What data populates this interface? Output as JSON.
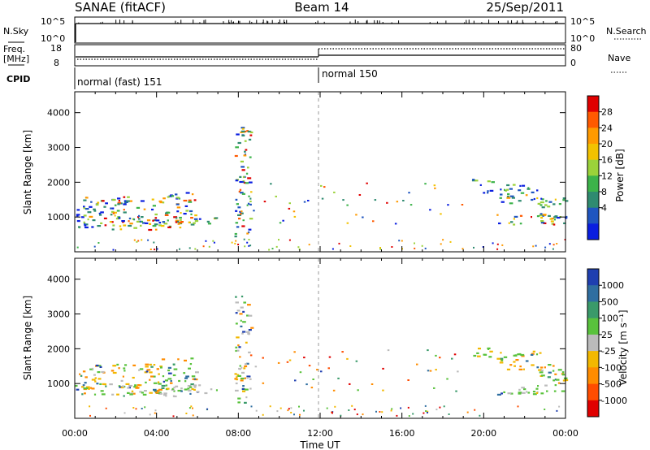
{
  "header": {
    "station": "SANAE (fitACF)",
    "beam": "Beam 14",
    "date": "25/Sep/2011"
  },
  "top_panel": {
    "nsky_label": "N.Sky",
    "nsearch_label": "N.Search",
    "nsky_ticks": [
      "10^5",
      "10^0"
    ],
    "nsearch_ticks": [
      "10^5",
      "10^0"
    ],
    "freq_label_line1": "Freq.",
    "freq_label_line2": "[MHz]",
    "freq_ticks": [
      "18",
      "8"
    ],
    "nave_label": "Nave",
    "nave_ticks": [
      "80",
      "0"
    ],
    "cpid_label": "CPID",
    "cpid_segments": [
      {
        "label": "normal (fast) 151",
        "start_hour": 0
      },
      {
        "label": "normal 150",
        "start_hour": 12
      }
    ]
  },
  "x_axis": {
    "ticks": [
      "00:00",
      "04:00",
      "08:00",
      "12:00",
      "16:00",
      "20:00",
      "00:00"
    ],
    "label": "Time UT"
  },
  "chart_data": [
    {
      "type": "heatmap",
      "quantity": "Power",
      "ylabel": "Slant Range [km]",
      "yticks": [
        1000,
        2000,
        3000,
        4000
      ],
      "ylim": [
        0,
        4600
      ],
      "xlim_hours": [
        0,
        24
      ],
      "colorbar_label": "Power [dB]",
      "colorbar_ticks": [
        "28",
        "24",
        "20",
        "16",
        "12",
        "8",
        "4"
      ],
      "colorbar_colors": [
        "#e00000",
        "#ff5a00",
        "#ff9a00",
        "#f2c200",
        "#9bd23a",
        "#3cb34a",
        "#2f8b70",
        "#1f55c0",
        "#0a1ee0"
      ],
      "regions": [
        {
          "t0": 0.3,
          "t1": 4.4,
          "r0": 700,
          "r1": 1600,
          "mix": [
            0.45,
            0.3,
            0.15,
            0.1
          ]
        },
        {
          "t0": 4.2,
          "t1": 5.9,
          "r0": 800,
          "r1": 1750,
          "mix": [
            0.5,
            0.3,
            0.15,
            0.05
          ]
        },
        {
          "t0": 1.7,
          "t1": 5.2,
          "r0": 650,
          "r1": 1000,
          "mix": [
            0.25,
            0.2,
            0.25,
            0.3
          ]
        },
        {
          "t0": 0.0,
          "t1": 0.6,
          "r0": 700,
          "r1": 1300,
          "mix": [
            0.6,
            0.3,
            0.1,
            0.0
          ]
        },
        {
          "t0": 5.5,
          "t1": 7.0,
          "r0": 800,
          "r1": 1000,
          "mix": [
            0.7,
            0.25,
            0.05,
            0.0
          ]
        },
        {
          "t0": 7.8,
          "t1": 8.6,
          "r0": 400,
          "r1": 3600,
          "mix": [
            0.5,
            0.3,
            0.1,
            0.1
          ]
        },
        {
          "t0": 19.4,
          "t1": 20.4,
          "r0": 1700,
          "r1": 2100,
          "mix": [
            0.6,
            0.3,
            0.1,
            0.0
          ]
        },
        {
          "t0": 20.5,
          "t1": 22.8,
          "r0": 1400,
          "r1": 1950,
          "mix": [
            0.5,
            0.35,
            0.15,
            0.0
          ]
        },
        {
          "t0": 20.6,
          "t1": 24.0,
          "r0": 800,
          "r1": 1100,
          "mix": [
            0.3,
            0.25,
            0.25,
            0.2
          ]
        },
        {
          "t0": 22.5,
          "t1": 24.0,
          "r0": 1000,
          "r1": 1600,
          "mix": [
            0.7,
            0.25,
            0.05,
            0.0
          ]
        }
      ]
    },
    {
      "type": "heatmap",
      "quantity": "Velocity",
      "ylabel": "Slant Range [km]",
      "yticks": [
        1000,
        2000,
        3000,
        4000
      ],
      "ylim": [
        0,
        4600
      ],
      "xlim_hours": [
        0,
        24
      ],
      "colorbar_label": "Velocity [m s⁻¹]",
      "colorbar_ticks": [
        "1000",
        "500",
        "100",
        "25",
        "-25",
        "-100",
        "-500",
        "-1000"
      ],
      "colorbar_colors": [
        "#1f3fb0",
        "#2f6ea0",
        "#3a9a6a",
        "#59c23c",
        "#bbbbbb",
        "#f2b800",
        "#ff8c00",
        "#ff4d00",
        "#e00000"
      ],
      "regions": [
        {
          "t0": 0.3,
          "t1": 4.4,
          "r0": 700,
          "r1": 1600,
          "mix": [
            0.15,
            0.25,
            0.5,
            0.1
          ]
        },
        {
          "t0": 4.2,
          "t1": 5.9,
          "r0": 800,
          "r1": 1750,
          "mix": [
            0.2,
            0.45,
            0.25,
            0.1
          ]
        },
        {
          "t0": 1.7,
          "t1": 5.2,
          "r0": 650,
          "r1": 950,
          "mix": [
            0.1,
            0.2,
            0.1,
            0.6
          ]
        },
        {
          "t0": 0.0,
          "t1": 0.6,
          "r0": 700,
          "r1": 1300,
          "mix": [
            0.3,
            0.3,
            0.4,
            0.0
          ]
        },
        {
          "t0": 5.5,
          "t1": 7.0,
          "r0": 700,
          "r1": 1000,
          "mix": [
            0.1,
            0.2,
            0.1,
            0.6
          ]
        },
        {
          "t0": 7.8,
          "t1": 8.6,
          "r0": 400,
          "r1": 3600,
          "mix": [
            0.2,
            0.2,
            0.2,
            0.4
          ]
        },
        {
          "t0": 19.4,
          "t1": 20.4,
          "r0": 1700,
          "r1": 2100,
          "mix": [
            0.1,
            0.4,
            0.5,
            0.0
          ]
        },
        {
          "t0": 20.5,
          "t1": 22.8,
          "r0": 1400,
          "r1": 1950,
          "mix": [
            0.05,
            0.35,
            0.6,
            0.0
          ]
        },
        {
          "t0": 20.6,
          "t1": 24.0,
          "r0": 700,
          "r1": 1000,
          "mix": [
            0.1,
            0.55,
            0.05,
            0.3
          ]
        },
        {
          "t0": 22.5,
          "t1": 24.0,
          "r0": 1000,
          "r1": 1600,
          "mix": [
            0.1,
            0.5,
            0.3,
            0.1
          ]
        }
      ]
    }
  ]
}
